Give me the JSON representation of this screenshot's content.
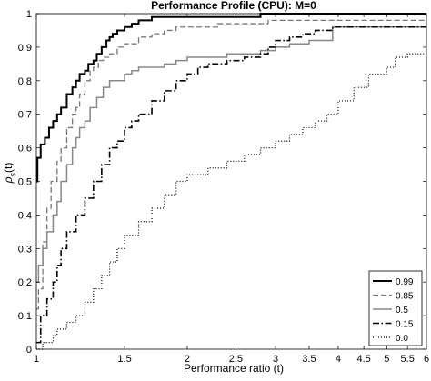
{
  "chart_data": {
    "type": "line",
    "title": "Performance Profile (CPU): M=0",
    "xlabel": "Performance ratio (t)",
    "ylabel": "ρ",
    "ylabel_subscript": "s",
    "ylabel_suffix": "(t)",
    "x_scale": "log",
    "xlim": [
      1,
      6
    ],
    "ylim": [
      0,
      1
    ],
    "x_ticks": [
      1,
      1.5,
      2,
      2.5,
      3,
      3.5,
      4,
      4.5,
      5,
      5.5,
      6
    ],
    "x_tick_labels": [
      "1",
      "1.5",
      "2",
      "2.5",
      "3",
      "3.5",
      "4",
      "4.5",
      "5",
      "5.5",
      "6"
    ],
    "y_ticks": [
      0,
      0.1,
      0.2,
      0.3,
      0.4,
      0.5,
      0.6,
      0.7,
      0.8,
      0.9,
      1
    ],
    "y_tick_labels": [
      "0",
      "0.1",
      "0.2",
      "0.3",
      "0.4",
      "0.5",
      "0.6",
      "0.7",
      "0.8",
      "0.9",
      "1"
    ],
    "grid": false,
    "legend_position": "bottom-right",
    "series": [
      {
        "name": "0.99",
        "style": "solid",
        "stroke_color": "#000000",
        "x": [
          1,
          1.005,
          1.02,
          1.04,
          1.06,
          1.08,
          1.1,
          1.12,
          1.15,
          1.18,
          1.2,
          1.22,
          1.25,
          1.27,
          1.3,
          1.32,
          1.35,
          1.38,
          1.4,
          1.42,
          1.45,
          1.5,
          1.55,
          1.6,
          1.65,
          1.7,
          1.8,
          1.9,
          2.0,
          2.2,
          2.4,
          2.6,
          2.8,
          6
        ],
        "y": [
          0.5,
          0.57,
          0.61,
          0.63,
          0.66,
          0.68,
          0.7,
          0.72,
          0.76,
          0.78,
          0.8,
          0.82,
          0.83,
          0.85,
          0.86,
          0.88,
          0.9,
          0.92,
          0.93,
          0.94,
          0.95,
          0.96,
          0.97,
          0.98,
          0.98,
          0.99,
          0.99,
          0.99,
          0.99,
          0.99,
          0.99,
          0.99,
          1.0,
          1.0
        ]
      },
      {
        "name": "0.85",
        "style": "dashed",
        "stroke_color": "#777777",
        "x": [
          1,
          1.01,
          1.03,
          1.05,
          1.07,
          1.1,
          1.12,
          1.15,
          1.18,
          1.2,
          1.22,
          1.25,
          1.28,
          1.3,
          1.33,
          1.36,
          1.4,
          1.45,
          1.5,
          1.6,
          1.7,
          1.8,
          1.9,
          2.0,
          2.1,
          2.3,
          2.6,
          2.9,
          3.2,
          6
        ],
        "y": [
          0.12,
          0.18,
          0.32,
          0.42,
          0.5,
          0.56,
          0.6,
          0.66,
          0.7,
          0.72,
          0.76,
          0.8,
          0.83,
          0.84,
          0.86,
          0.87,
          0.88,
          0.9,
          0.91,
          0.93,
          0.94,
          0.95,
          0.96,
          0.96,
          0.96,
          0.97,
          0.97,
          0.98,
          0.98,
          0.98
        ]
      },
      {
        "name": "0.5",
        "style": "solid",
        "stroke_color": "#888888",
        "x": [
          1,
          1.01,
          1.03,
          1.05,
          1.08,
          1.1,
          1.12,
          1.15,
          1.18,
          1.2,
          1.22,
          1.25,
          1.28,
          1.32,
          1.36,
          1.4,
          1.45,
          1.5,
          1.55,
          1.6,
          1.7,
          1.8,
          1.9,
          2.0,
          2.1,
          2.2,
          2.4,
          2.6,
          2.8,
          3.0,
          3.2,
          3.5,
          3.9,
          6
        ],
        "y": [
          0.2,
          0.25,
          0.3,
          0.35,
          0.4,
          0.44,
          0.5,
          0.55,
          0.6,
          0.63,
          0.66,
          0.68,
          0.72,
          0.75,
          0.78,
          0.8,
          0.8,
          0.82,
          0.83,
          0.84,
          0.84,
          0.85,
          0.86,
          0.87,
          0.87,
          0.87,
          0.88,
          0.88,
          0.89,
          0.9,
          0.91,
          0.92,
          0.96,
          0.96
        ]
      },
      {
        "name": "0.15",
        "style": "dashdot",
        "stroke_color": "#000000",
        "x": [
          1,
          1.02,
          1.05,
          1.08,
          1.1,
          1.12,
          1.15,
          1.2,
          1.25,
          1.3,
          1.35,
          1.4,
          1.45,
          1.5,
          1.55,
          1.6,
          1.7,
          1.8,
          1.9,
          2.0,
          2.1,
          2.2,
          2.4,
          2.6,
          2.8,
          2.9,
          3.0,
          3.2,
          3.4,
          3.6,
          3.9,
          6
        ],
        "y": [
          0.02,
          0.1,
          0.15,
          0.2,
          0.25,
          0.3,
          0.35,
          0.4,
          0.45,
          0.5,
          0.55,
          0.6,
          0.62,
          0.66,
          0.68,
          0.7,
          0.74,
          0.77,
          0.8,
          0.82,
          0.84,
          0.85,
          0.86,
          0.87,
          0.88,
          0.9,
          0.92,
          0.93,
          0.94,
          0.95,
          0.96,
          0.96
        ]
      },
      {
        "name": "0.0",
        "style": "dotted",
        "stroke_color": "#000000",
        "x": [
          1,
          1.03,
          1.08,
          1.1,
          1.15,
          1.2,
          1.25,
          1.3,
          1.35,
          1.4,
          1.45,
          1.5,
          1.6,
          1.7,
          1.8,
          1.9,
          2.0,
          2.2,
          2.4,
          2.6,
          2.8,
          3.0,
          3.2,
          3.4,
          3.6,
          3.8,
          4.0,
          4.3,
          4.6,
          5.0,
          5.2,
          5.5,
          6
        ],
        "y": [
          0.0,
          0.02,
          0.04,
          0.06,
          0.08,
          0.1,
          0.14,
          0.18,
          0.22,
          0.26,
          0.3,
          0.34,
          0.38,
          0.42,
          0.46,
          0.5,
          0.52,
          0.54,
          0.56,
          0.58,
          0.6,
          0.62,
          0.64,
          0.66,
          0.68,
          0.7,
          0.74,
          0.78,
          0.82,
          0.84,
          0.87,
          0.88,
          0.88
        ]
      }
    ]
  }
}
